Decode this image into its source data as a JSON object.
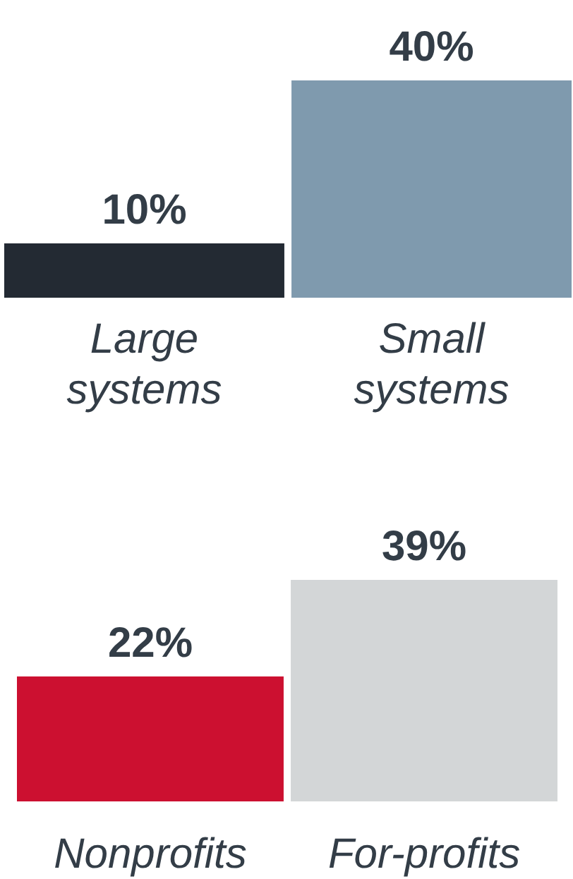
{
  "chart_data": [
    {
      "type": "bar",
      "categories": [
        "Large systems",
        "Small systems"
      ],
      "colors": [
        "#232a33",
        "#7f9aae"
      ],
      "values": [
        10,
        40
      ],
      "value_labels": [
        "10%",
        "40%"
      ]
    },
    {
      "type": "bar",
      "categories": [
        "Nonprofits",
        "For-profits"
      ],
      "colors": [
        "#cc1030",
        "#d3d6d7"
      ],
      "values": [
        22,
        39
      ],
      "value_labels": [
        "22%",
        "39%"
      ]
    }
  ]
}
